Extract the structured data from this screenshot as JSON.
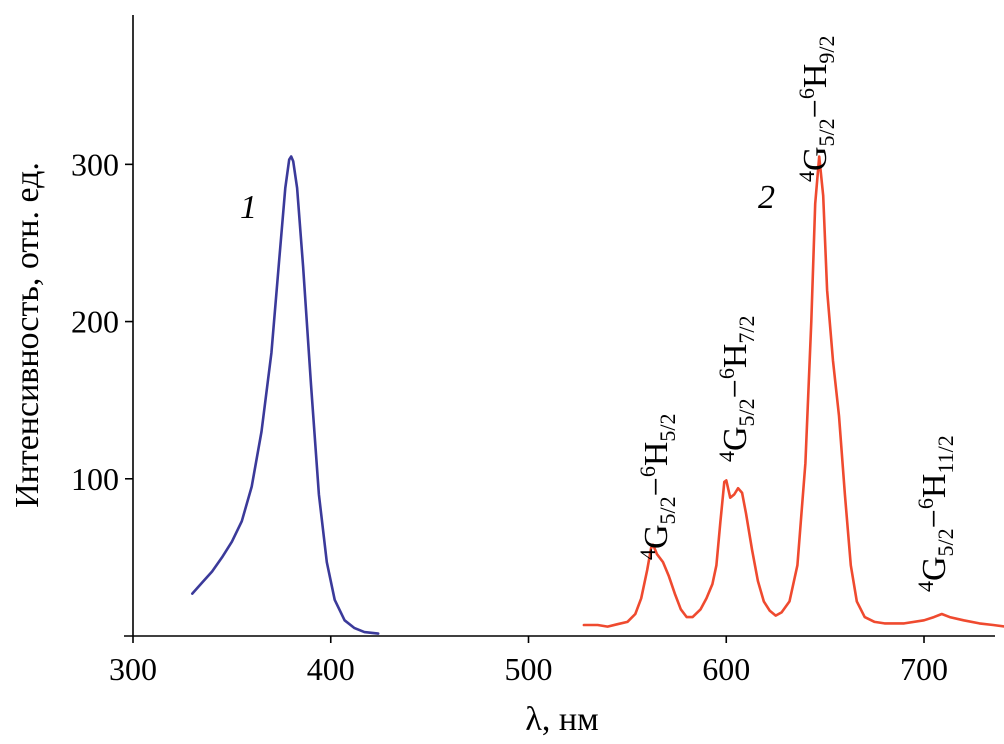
{
  "chart_data": {
    "type": "line",
    "title": "",
    "xlabel": "λ, нм",
    "ylabel": "Интенсивность, отн. ед.",
    "xlim": [
      300,
      745
    ],
    "ylim": [
      0,
      395
    ],
    "x_ticks": [
      {
        "value": 300,
        "label": "300"
      },
      {
        "value": 400,
        "label": "400"
      },
      {
        "value": 500,
        "label": "500"
      },
      {
        "value": 600,
        "label": "600"
      },
      {
        "value": 700,
        "label": "700"
      }
    ],
    "y_ticks": [
      {
        "value": 100,
        "label": "100"
      },
      {
        "value": 200,
        "label": "200"
      },
      {
        "value": 300,
        "label": "300"
      }
    ],
    "grid": false,
    "series": [
      {
        "name": "1",
        "color": "#3b3a9a",
        "points": [
          [
            330,
            27
          ],
          [
            335,
            34
          ],
          [
            340,
            41
          ],
          [
            345,
            50
          ],
          [
            350,
            60
          ],
          [
            355,
            73
          ],
          [
            360,
            95
          ],
          [
            365,
            130
          ],
          [
            370,
            180
          ],
          [
            374,
            240
          ],
          [
            377,
            285
          ],
          [
            379,
            303
          ],
          [
            380,
            305
          ],
          [
            381,
            302
          ],
          [
            383,
            285
          ],
          [
            386,
            235
          ],
          [
            390,
            160
          ],
          [
            394,
            90
          ],
          [
            398,
            47
          ],
          [
            402,
            23
          ],
          [
            407,
            10
          ],
          [
            412,
            5
          ],
          [
            417,
            2.5
          ],
          [
            424,
            1.5
          ]
        ]
      },
      {
        "name": "2",
        "color": "#ef4a2f",
        "points": [
          [
            528,
            7
          ],
          [
            535,
            7
          ],
          [
            540,
            6
          ],
          [
            545,
            7.5
          ],
          [
            550,
            9
          ],
          [
            554,
            14
          ],
          [
            557,
            24
          ],
          [
            560,
            42
          ],
          [
            562,
            56
          ],
          [
            563,
            58
          ],
          [
            565,
            52
          ],
          [
            568,
            47
          ],
          [
            571,
            38
          ],
          [
            574,
            27
          ],
          [
            577,
            17
          ],
          [
            580,
            12
          ],
          [
            583,
            12
          ],
          [
            587,
            17
          ],
          [
            590,
            24
          ],
          [
            593,
            33
          ],
          [
            595,
            45
          ],
          [
            597,
            72
          ],
          [
            599,
            98
          ],
          [
            600,
            99
          ],
          [
            602,
            88
          ],
          [
            604,
            90
          ],
          [
            606,
            94
          ],
          [
            608,
            91
          ],
          [
            610,
            78
          ],
          [
            613,
            55
          ],
          [
            616,
            35
          ],
          [
            619,
            22
          ],
          [
            622,
            16
          ],
          [
            625,
            13
          ],
          [
            628,
            15
          ],
          [
            632,
            22
          ],
          [
            636,
            45
          ],
          [
            640,
            110
          ],
          [
            643,
            200
          ],
          [
            645,
            275
          ],
          [
            647,
            305
          ],
          [
            649,
            280
          ],
          [
            651,
            220
          ],
          [
            654,
            175
          ],
          [
            657,
            140
          ],
          [
            660,
            90
          ],
          [
            663,
            45
          ],
          [
            666,
            22
          ],
          [
            670,
            12
          ],
          [
            675,
            9
          ],
          [
            680,
            8
          ],
          [
            690,
            8
          ],
          [
            700,
            10
          ],
          [
            705,
            12
          ],
          [
            709,
            14
          ],
          [
            713,
            12
          ],
          [
            720,
            10
          ],
          [
            728,
            8
          ],
          [
            735,
            7
          ],
          [
            741,
            6
          ]
        ]
      }
    ],
    "annotations": [
      {
        "text": "1",
        "kind": "series-label"
      },
      {
        "text": "2",
        "kind": "series-label"
      },
      {
        "kind": "transition",
        "g_sup": "4",
        "g": "G",
        "g_sub": "5/2",
        "dash": "−",
        "h_sup": "6",
        "h": "H",
        "h_sub": "5/2"
      },
      {
        "kind": "transition",
        "g_sup": "4",
        "g": "G",
        "g_sub": "5/2",
        "dash": "−",
        "h_sup": "6",
        "h": "H",
        "h_sub": "7/2"
      },
      {
        "kind": "transition",
        "g_sup": "4",
        "g": "G",
        "g_sub": "5/2",
        "dash": "−",
        "h_sup": "6",
        "h": "H",
        "h_sub": "9/2"
      },
      {
        "kind": "transition",
        "g_sup": "4",
        "g": "G",
        "g_sub": "5/2",
        "dash": "−",
        "h_sup": "6",
        "h": "H",
        "h_sub": "11/2"
      }
    ]
  }
}
